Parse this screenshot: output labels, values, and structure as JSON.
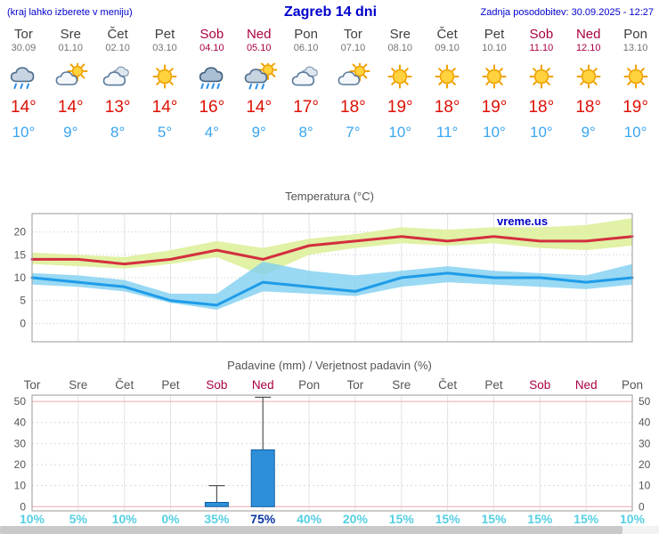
{
  "header": {
    "left_note": "(kraj lahko izberete v meniju)",
    "title": "Zagreb 14 dni",
    "updated": "Zadnja posodobitev: 30.09.2025 - 12:27"
  },
  "days": [
    {
      "name": "Tor",
      "date": "30.09",
      "weekend": false,
      "icon": "rain",
      "tmax": "14°",
      "tmin": "10°",
      "prob": "10%",
      "prob_strong": false
    },
    {
      "name": "Sre",
      "date": "01.10",
      "weekend": false,
      "icon": "partly",
      "tmax": "14°",
      "tmin": "9°",
      "prob": "5%",
      "prob_strong": false
    },
    {
      "name": "Čet",
      "date": "02.10",
      "weekend": false,
      "icon": "cloudy",
      "tmax": "13°",
      "tmin": "8°",
      "prob": "10%",
      "prob_strong": false
    },
    {
      "name": "Pet",
      "date": "03.10",
      "weekend": false,
      "icon": "sun",
      "tmax": "14°",
      "tmin": "5°",
      "prob": "0%",
      "prob_strong": false
    },
    {
      "name": "Sob",
      "date": "04.10",
      "weekend": true,
      "icon": "rain_heavy",
      "tmax": "16°",
      "tmin": "4°",
      "prob": "35%",
      "prob_strong": false
    },
    {
      "name": "Ned",
      "date": "05.10",
      "weekend": true,
      "icon": "rain_sun",
      "tmax": "14°",
      "tmin": "9°",
      "prob": "75%",
      "prob_strong": true
    },
    {
      "name": "Pon",
      "date": "06.10",
      "weekend": false,
      "icon": "cloudy",
      "tmax": "17°",
      "tmin": "8°",
      "prob": "40%",
      "prob_strong": false
    },
    {
      "name": "Tor",
      "date": "07.10",
      "weekend": false,
      "icon": "partly",
      "tmax": "18°",
      "tmin": "7°",
      "prob": "20%",
      "prob_strong": false
    },
    {
      "name": "Sre",
      "date": "08.10",
      "weekend": false,
      "icon": "sun",
      "tmax": "19°",
      "tmin": "10°",
      "prob": "15%",
      "prob_strong": false
    },
    {
      "name": "Čet",
      "date": "09.10",
      "weekend": false,
      "icon": "sun",
      "tmax": "18°",
      "tmin": "11°",
      "prob": "15%",
      "prob_strong": false
    },
    {
      "name": "Pet",
      "date": "10.10",
      "weekend": false,
      "icon": "sun",
      "tmax": "19°",
      "tmin": "10°",
      "prob": "15%",
      "prob_strong": false
    },
    {
      "name": "Sob",
      "date": "11.10",
      "weekend": true,
      "icon": "sun",
      "tmax": "18°",
      "tmin": "10°",
      "prob": "15%",
      "prob_strong": false
    },
    {
      "name": "Ned",
      "date": "12.10",
      "weekend": true,
      "icon": "sun",
      "tmax": "18°",
      "tmin": "9°",
      "prob": "15%",
      "prob_strong": false
    },
    {
      "name": "Pon",
      "date": "13.10",
      "weekend": false,
      "icon": "sun",
      "tmax": "19°",
      "tmin": "10°",
      "prob": "10%",
      "prob_strong": false
    }
  ],
  "chart_data": [
    {
      "type": "line",
      "title": "Temperatura (°C)",
      "watermark": "vreme.us",
      "x": [
        "Tor 30.09",
        "Sre 01.10",
        "Čet 02.10",
        "Pet 03.10",
        "Sob 04.10",
        "Ned 05.10",
        "Pon 06.10",
        "Tor 07.10",
        "Sre 08.10",
        "Čet 09.10",
        "Pet 10.10",
        "Sob 11.10",
        "Ned 12.10",
        "Pon 13.10"
      ],
      "yticks": [
        0,
        5,
        10,
        15,
        20
      ],
      "ylim": [
        -4,
        24
      ],
      "grid": true,
      "series": [
        {
          "name": "max",
          "color": "#d32f3f",
          "values": [
            14,
            14,
            13,
            14,
            16,
            14,
            17,
            18,
            19,
            18,
            19,
            18,
            18,
            19
          ]
        },
        {
          "name": "max_upper",
          "values": [
            15.5,
            15,
            14.5,
            16,
            18,
            16.5,
            18.5,
            19.5,
            21,
            20.5,
            21,
            21,
            21.5,
            23
          ]
        },
        {
          "name": "max_lower",
          "values": [
            13,
            12.5,
            12,
            13,
            14.5,
            10.5,
            15,
            16.5,
            17.5,
            17,
            17.5,
            16.5,
            16,
            17
          ]
        },
        {
          "name": "min",
          "color": "#1f9ce8",
          "values": [
            10,
            9,
            8,
            5,
            4,
            9,
            8,
            7,
            10,
            11,
            10,
            10,
            9,
            10
          ]
        },
        {
          "name": "min_upper",
          "values": [
            11,
            10.5,
            9.5,
            6.5,
            6.5,
            13.5,
            11.5,
            10.5,
            11.5,
            12.5,
            11.5,
            11,
            10.5,
            13
          ]
        },
        {
          "name": "min_lower",
          "values": [
            8.5,
            8,
            7,
            4.5,
            3,
            7,
            6.5,
            6,
            8,
            9,
            8.5,
            8,
            7.5,
            8.5
          ]
        }
      ],
      "band_colors": {
        "max_band": "#dff0a0",
        "min_band": "#7fd0f0"
      }
    },
    {
      "type": "bar",
      "title": "Padavine (mm) / Verjetnost padavin (%)",
      "categories": [
        "Tor",
        "Sre",
        "Čet",
        "Pet",
        "Sob",
        "Ned",
        "Pon",
        "Tor",
        "Sre",
        "Čet",
        "Pet",
        "Sob",
        "Ned",
        "Pon"
      ],
      "weekend": [
        false,
        false,
        false,
        false,
        true,
        true,
        false,
        false,
        false,
        false,
        false,
        true,
        true,
        false
      ],
      "values": [
        0,
        0,
        0,
        0,
        2,
        27,
        0,
        0,
        0,
        0,
        0,
        0,
        0,
        0
      ],
      "whiskers": [
        0,
        0,
        0,
        0,
        10,
        52,
        0,
        0,
        0,
        0,
        0,
        0,
        0,
        0
      ],
      "probabilities": [
        "10%",
        "5%",
        "10%",
        "0%",
        "35%",
        "75%",
        "40%",
        "20%",
        "15%",
        "15%",
        "15%",
        "15%",
        "15%",
        "10%"
      ],
      "prob_strong_index": 5,
      "yticks": [
        0,
        10,
        20,
        30,
        40,
        50
      ],
      "ylim": [
        -2,
        53
      ],
      "bar_color": "#2d8fd8",
      "bar_border": "#0b5fa5"
    }
  ]
}
